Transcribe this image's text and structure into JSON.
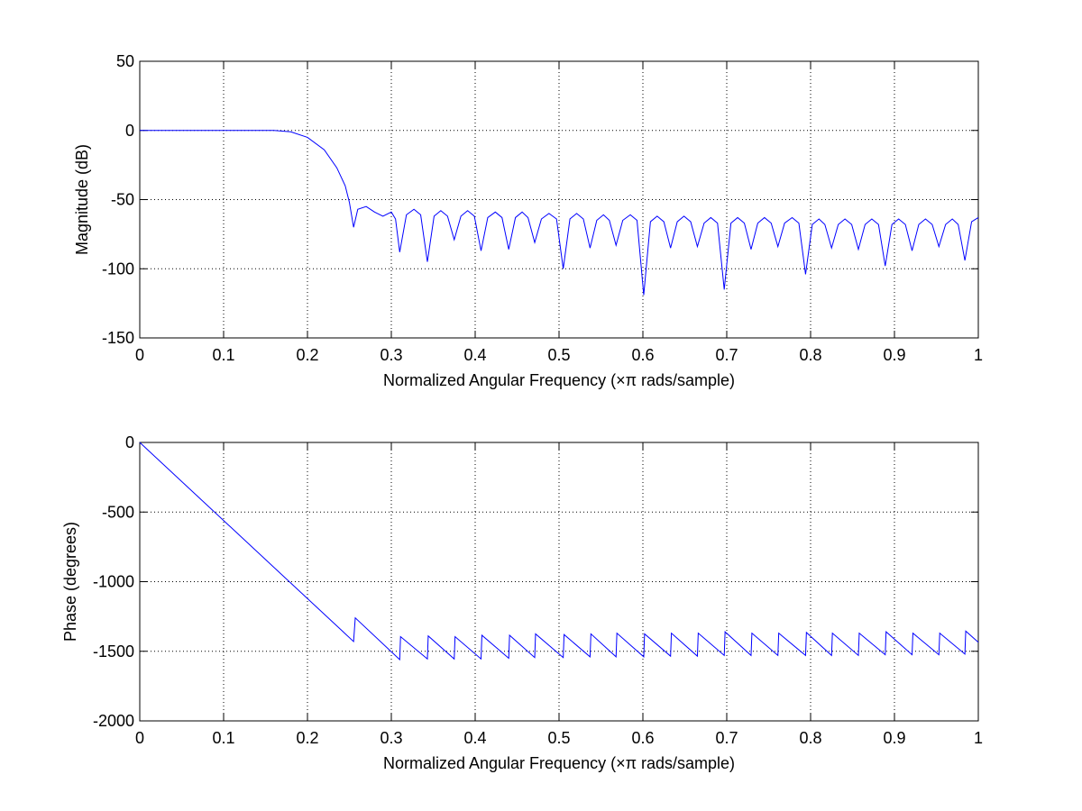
{
  "chart_data": [
    {
      "type": "line",
      "xlabel": "Normalized Angular Frequency  (×π rads/sample)",
      "ylabel": "Magnitude (dB)",
      "xlim": [
        0,
        1
      ],
      "ylim": [
        -150,
        50
      ],
      "xticks": [
        0,
        0.1,
        0.2,
        0.3,
        0.4,
        0.5,
        0.6,
        0.7,
        0.8,
        0.9,
        1
      ],
      "yticks": [
        -150,
        -100,
        -50,
        0,
        50
      ],
      "grid": true,
      "color": "#0000ff",
      "x": [
        0,
        0.1,
        0.16,
        0.18,
        0.2,
        0.22,
        0.235,
        0.245,
        0.25,
        0.255,
        0.26,
        0.27,
        0.28,
        0.29,
        0.3,
        0.305,
        0.31,
        0.318,
        0.327,
        0.335,
        0.343,
        0.351,
        0.359,
        0.367,
        0.375,
        0.383,
        0.391,
        0.399,
        0.407,
        0.415,
        0.424,
        0.432,
        0.44,
        0.448,
        0.456,
        0.463,
        0.471,
        0.479,
        0.488,
        0.497,
        0.505,
        0.513,
        0.521,
        0.529,
        0.537,
        0.545,
        0.553,
        0.56,
        0.568,
        0.576,
        0.585,
        0.593,
        0.601,
        0.609,
        0.617,
        0.625,
        0.633,
        0.641,
        0.649,
        0.657,
        0.665,
        0.673,
        0.681,
        0.689,
        0.697,
        0.705,
        0.713,
        0.721,
        0.729,
        0.737,
        0.745,
        0.753,
        0.761,
        0.769,
        0.778,
        0.786,
        0.794,
        0.802,
        0.81,
        0.817,
        0.825,
        0.833,
        0.841,
        0.849,
        0.857,
        0.865,
        0.873,
        0.881,
        0.889,
        0.897,
        0.905,
        0.913,
        0.921,
        0.929,
        0.937,
        0.945,
        0.953,
        0.961,
        0.969,
        0.976,
        0.984,
        0.992,
        1.0
      ],
      "values": [
        0,
        0,
        0,
        -1,
        -5,
        -14,
        -27,
        -40,
        -52,
        -70,
        -57,
        -55,
        -59,
        -62,
        -59,
        -64,
        -88,
        -61,
        -57,
        -61,
        -95,
        -62,
        -58,
        -62,
        -79,
        -62,
        -58,
        -62,
        -87,
        -63,
        -59,
        -63,
        -86,
        -63,
        -59,
        -63,
        -81,
        -64,
        -60,
        -64,
        -100,
        -64,
        -60,
        -64,
        -85,
        -65,
        -61,
        -65,
        -83,
        -65,
        -61,
        -65,
        -119,
        -66,
        -62,
        -66,
        -85,
        -66,
        -62,
        -66,
        -84,
        -67,
        -63,
        -67,
        -115,
        -67,
        -63,
        -67,
        -86,
        -67,
        -63,
        -67,
        -84,
        -67,
        -63,
        -67,
        -104,
        -68,
        -64,
        -68,
        -85,
        -68,
        -64,
        -68,
        -86,
        -68,
        -64,
        -68,
        -98,
        -68,
        -64,
        -68,
        -87,
        -68,
        -64,
        -68,
        -84,
        -68,
        -64,
        -68,
        -94,
        -66,
        -63
      ]
    },
    {
      "type": "line",
      "xlabel": "Normalized Angular Frequency  (×π rads/sample)",
      "ylabel": "Phase (degrees)",
      "xlim": [
        0,
        1
      ],
      "ylim": [
        -2000,
        0
      ],
      "xticks": [
        0,
        0.1,
        0.2,
        0.3,
        0.4,
        0.5,
        0.6,
        0.7,
        0.8,
        0.9,
        1
      ],
      "yticks": [
        -2000,
        -1500,
        -1000,
        -500,
        0
      ],
      "grid": true,
      "color": "#0000ff",
      "x": [
        0,
        0.255,
        0.257,
        0.31,
        0.311,
        0.343,
        0.344,
        0.375,
        0.376,
        0.407,
        0.408,
        0.44,
        0.441,
        0.471,
        0.472,
        0.505,
        0.506,
        0.537,
        0.538,
        0.568,
        0.569,
        0.601,
        0.602,
        0.633,
        0.634,
        0.665,
        0.666,
        0.697,
        0.698,
        0.729,
        0.73,
        0.761,
        0.762,
        0.794,
        0.795,
        0.825,
        0.826,
        0.857,
        0.858,
        0.889,
        0.89,
        0.921,
        0.922,
        0.953,
        0.954,
        0.984,
        0.985,
        1.0
      ],
      "values": [
        0,
        -1430,
        -1260,
        -1560,
        -1395,
        -1555,
        -1390,
        -1555,
        -1395,
        -1555,
        -1385,
        -1550,
        -1385,
        -1545,
        -1375,
        -1545,
        -1380,
        -1540,
        -1375,
        -1540,
        -1370,
        -1540,
        -1375,
        -1535,
        -1370,
        -1535,
        -1370,
        -1530,
        -1360,
        -1530,
        -1370,
        -1530,
        -1370,
        -1530,
        -1365,
        -1530,
        -1370,
        -1530,
        -1370,
        -1525,
        -1360,
        -1525,
        -1370,
        -1525,
        -1370,
        -1520,
        -1355,
        -1435
      ]
    }
  ]
}
